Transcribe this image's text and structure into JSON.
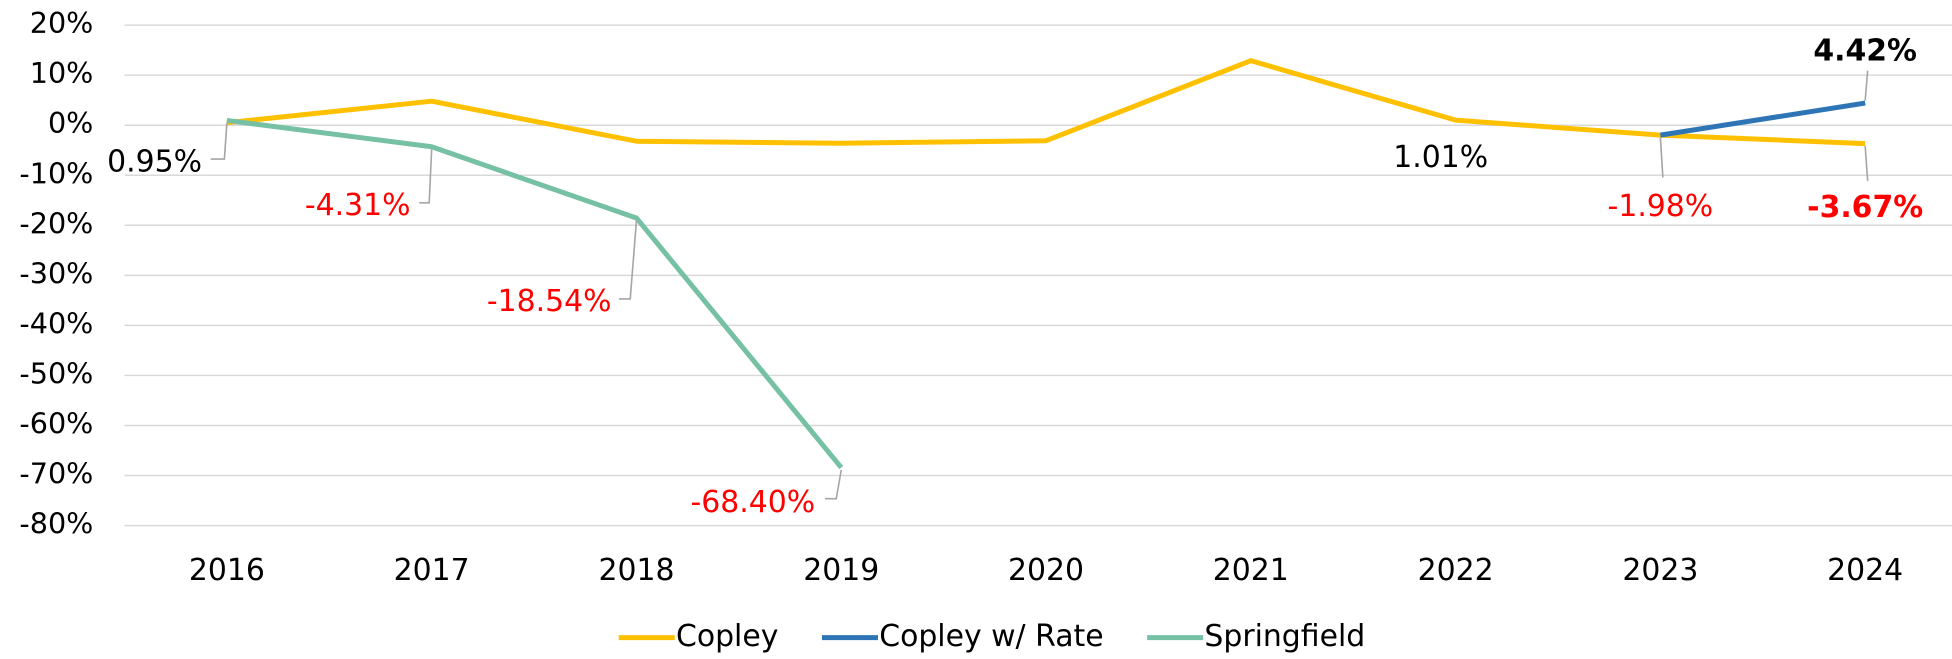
{
  "chart_data": {
    "type": "line",
    "categories": [
      "2016",
      "2017",
      "2018",
      "2019",
      "2020",
      "2021",
      "2022",
      "2023",
      "2024"
    ],
    "series": [
      {
        "name": "Copley",
        "color": "#ffc000",
        "values": [
          0.5,
          4.8,
          -3.2,
          -3.6,
          -3.1,
          12.9,
          1.01,
          -1.98,
          -3.67
        ],
        "value_labels": [
          null,
          null,
          null,
          null,
          null,
          null,
          "1.01%",
          "-1.98%",
          "-3.67%"
        ]
      },
      {
        "name": "Copley w/ Rate",
        "color": "#2e75b6",
        "values": [
          null,
          null,
          null,
          null,
          null,
          null,
          null,
          -1.98,
          4.42
        ],
        "value_labels": [
          null,
          null,
          null,
          null,
          null,
          null,
          null,
          null,
          "4.42%"
        ]
      },
      {
        "name": "Springfield",
        "color": "#76c0a3",
        "values": [
          0.95,
          -4.31,
          -18.54,
          -68.4,
          null,
          null,
          null,
          null,
          null
        ],
        "value_labels": [
          "0.95%",
          "-4.31%",
          "-18.54%",
          "-68.40%",
          null,
          null,
          null,
          null,
          null
        ]
      }
    ],
    "ylim": [
      -80,
      20
    ],
    "yticks": [
      {
        "value": -80,
        "label": "-80%"
      },
      {
        "value": -70,
        "label": "-70%"
      },
      {
        "value": -60,
        "label": "-60%"
      },
      {
        "value": -50,
        "label": "-50%"
      },
      {
        "value": -40,
        "label": "-40%"
      },
      {
        "value": -30,
        "label": "-30%"
      },
      {
        "value": -20,
        "label": "-20%"
      },
      {
        "value": -10,
        "label": "-10%"
      },
      {
        "value": 0,
        "label": "0%"
      },
      {
        "value": 10,
        "label": "10%"
      },
      {
        "value": 20,
        "label": "20%"
      }
    ],
    "grid": true,
    "legend": "bottom"
  }
}
